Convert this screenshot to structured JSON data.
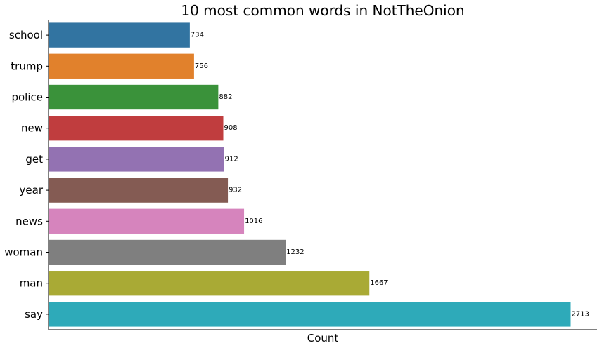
{
  "chart_data": {
    "type": "bar",
    "orientation": "horizontal",
    "title": "10 most common words in NotTheOnion",
    "xlabel": "Count",
    "ylabel": "",
    "xlim": [
      0,
      2850
    ],
    "grid": false,
    "legend": "none",
    "show_x_tick_labels": false,
    "categories": [
      "school",
      "trump",
      "police",
      "new",
      "get",
      "year",
      "news",
      "woman",
      "man",
      "say"
    ],
    "values": [
      734,
      756,
      882,
      908,
      912,
      932,
      1016,
      1232,
      1667,
      2713
    ],
    "colors": [
      "#3274a1",
      "#e1812c",
      "#3a923a",
      "#c03d3e",
      "#9372b2",
      "#845b53",
      "#d684bd",
      "#7f7f7f",
      "#a9aa35",
      "#2eaab9"
    ]
  }
}
